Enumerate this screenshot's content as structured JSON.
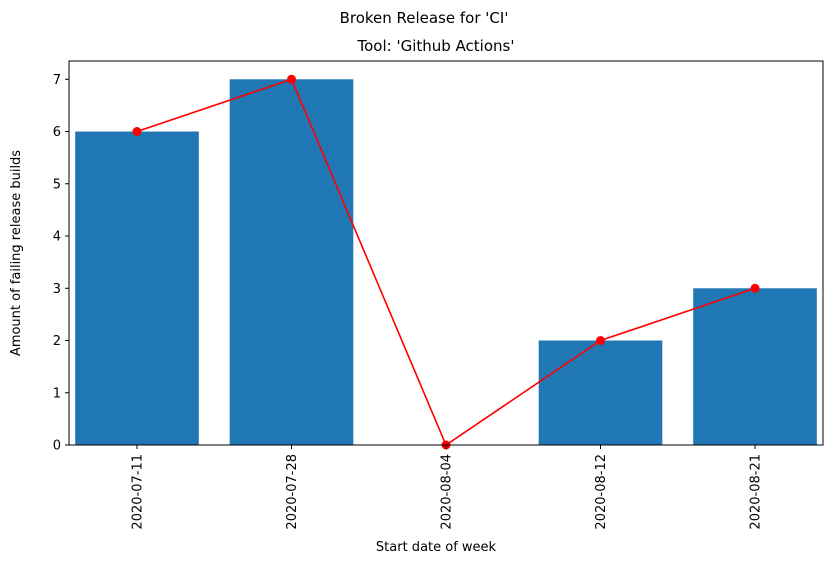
{
  "chart_data": {
    "type": "bar",
    "suptitle": "Broken Release for 'CI'",
    "title": "Tool: 'Github Actions'",
    "xlabel": "Start date of week",
    "ylabel": "Amount of failing release builds",
    "categories": [
      "2020-07-11",
      "2020-07-28",
      "2020-08-04",
      "2020-08-12",
      "2020-08-21"
    ],
    "values": [
      6,
      7,
      0,
      2,
      3
    ],
    "line_overlay": true,
    "ylim": [
      0,
      7.35
    ],
    "yticks": [
      0,
      1,
      2,
      3,
      4,
      5,
      6,
      7
    ],
    "grid": false,
    "bar_color": "#1f77b4",
    "line_color": "#ff0000"
  }
}
